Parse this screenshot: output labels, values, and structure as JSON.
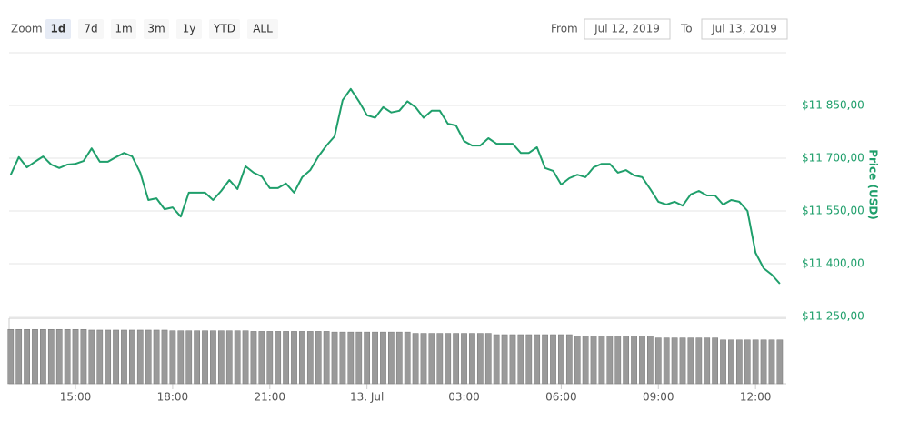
{
  "chart_data": {
    "type": "line",
    "range_selector": {
      "label": "Zoom",
      "buttons": [
        "1d",
        "7d",
        "1m",
        "3m",
        "1y",
        "YTD",
        "ALL"
      ],
      "selected": "1d",
      "from_label": "From",
      "from": "Jul 12, 2019",
      "to_label": "To",
      "to": "Jul 13, 2019"
    },
    "y_label": "Price (USD)",
    "color": "#1f9f6b",
    "volume_color": "#9a9a9a",
    "grid": true,
    "xlim": [
      "2019-07-12T12:57",
      "2019-07-13T12:57"
    ],
    "xticks": [
      {
        "value": "2019-07-12T15:00",
        "label": "15:00"
      },
      {
        "value": "2019-07-12T18:00",
        "label": "18:00"
      },
      {
        "value": "2019-07-12T21:00",
        "label": "21:00"
      },
      {
        "value": "2019-07-13T00:00",
        "label": "13. Jul"
      },
      {
        "value": "2019-07-13T03:00",
        "label": "03:00"
      },
      {
        "value": "2019-07-13T06:00",
        "label": "06:00"
      },
      {
        "value": "2019-07-13T09:00",
        "label": "09:00"
      },
      {
        "value": "2019-07-13T12:00",
        "label": "12:00"
      }
    ],
    "ylim": [
      11250,
      12000
    ],
    "yticks": [
      {
        "value": 11250,
        "label": "$11 250,00"
      },
      {
        "value": 11400,
        "label": "$11 400,00"
      },
      {
        "value": 11550,
        "label": "$11 550,00"
      },
      {
        "value": 11700,
        "label": "$11 700,00"
      },
      {
        "value": 11850,
        "label": "$11 850,00"
      }
    ],
    "x": [
      "2019-07-12T13:00",
      "2019-07-12T13:15",
      "2019-07-12T13:30",
      "2019-07-12T13:45",
      "2019-07-12T14:00",
      "2019-07-12T14:15",
      "2019-07-12T14:30",
      "2019-07-12T14:45",
      "2019-07-12T15:00",
      "2019-07-12T15:15",
      "2019-07-12T15:30",
      "2019-07-12T15:45",
      "2019-07-12T16:00",
      "2019-07-12T16:15",
      "2019-07-12T16:30",
      "2019-07-12T16:45",
      "2019-07-12T17:00",
      "2019-07-12T17:15",
      "2019-07-12T17:30",
      "2019-07-12T17:45",
      "2019-07-12T18:00",
      "2019-07-12T18:15",
      "2019-07-12T18:30",
      "2019-07-12T18:45",
      "2019-07-12T19:00",
      "2019-07-12T19:15",
      "2019-07-12T19:30",
      "2019-07-12T19:45",
      "2019-07-12T20:00",
      "2019-07-12T20:15",
      "2019-07-12T20:30",
      "2019-07-12T20:45",
      "2019-07-12T21:00",
      "2019-07-12T21:15",
      "2019-07-12T21:30",
      "2019-07-12T21:45",
      "2019-07-12T22:00",
      "2019-07-12T22:15",
      "2019-07-12T22:30",
      "2019-07-12T22:45",
      "2019-07-12T23:00",
      "2019-07-12T23:15",
      "2019-07-12T23:30",
      "2019-07-12T23:45",
      "2019-07-13T00:00",
      "2019-07-13T00:15",
      "2019-07-13T00:30",
      "2019-07-13T00:45",
      "2019-07-13T01:00",
      "2019-07-13T01:15",
      "2019-07-13T01:30",
      "2019-07-13T01:45",
      "2019-07-13T02:00",
      "2019-07-13T02:15",
      "2019-07-13T02:30",
      "2019-07-13T02:45",
      "2019-07-13T03:00",
      "2019-07-13T03:15",
      "2019-07-13T03:30",
      "2019-07-13T03:45",
      "2019-07-13T04:00",
      "2019-07-13T04:15",
      "2019-07-13T04:30",
      "2019-07-13T04:45",
      "2019-07-13T05:00",
      "2019-07-13T05:15",
      "2019-07-13T05:30",
      "2019-07-13T05:45",
      "2019-07-13T06:00",
      "2019-07-13T06:15",
      "2019-07-13T06:30",
      "2019-07-13T06:45",
      "2019-07-13T07:00",
      "2019-07-13T07:15",
      "2019-07-13T07:30",
      "2019-07-13T07:45",
      "2019-07-13T08:00",
      "2019-07-13T08:15",
      "2019-07-13T08:30",
      "2019-07-13T08:45",
      "2019-07-13T09:00",
      "2019-07-13T09:15",
      "2019-07-13T09:30",
      "2019-07-13T09:45",
      "2019-07-13T10:00",
      "2019-07-13T10:15",
      "2019-07-13T10:30",
      "2019-07-13T10:45",
      "2019-07-13T11:00",
      "2019-07-13T11:15",
      "2019-07-13T11:30",
      "2019-07-13T11:45",
      "2019-07-13T12:00",
      "2019-07-13T12:15",
      "2019-07-13T12:30",
      "2019-07-13T12:45"
    ],
    "values": [
      11653,
      11703,
      11674,
      11690,
      11705,
      11682,
      11672,
      11682,
      11684,
      11692,
      11728,
      11690,
      11690,
      11703,
      11715,
      11705,
      11659,
      11581,
      11586,
      11555,
      11560,
      11534,
      11602,
      11602,
      11602,
      11581,
      11607,
      11638,
      11612,
      11677,
      11659,
      11648,
      11615,
      11615,
      11628,
      11602,
      11646,
      11666,
      11705,
      11736,
      11762,
      11865,
      11897,
      11862,
      11822,
      11815,
      11845,
      11830,
      11835,
      11862,
      11845,
      11815,
      11835,
      11835,
      11798,
      11793,
      11749,
      11736,
      11736,
      11757,
      11741,
      11741,
      11741,
      11715,
      11715,
      11731,
      11672,
      11664,
      11625,
      11643,
      11653,
      11646,
      11674,
      11684,
      11684,
      11659,
      11666,
      11651,
      11646,
      11612,
      11576,
      11568,
      11576,
      11565,
      11597,
      11607,
      11594,
      11594,
      11568,
      11581,
      11576,
      11550,
      11431,
      11387,
      11369,
      11343
    ],
    "volume_ylim": [
      0,
      100
    ],
    "volume_values": [
      83,
      83,
      83,
      83,
      83,
      83,
      83,
      83,
      83,
      83,
      82,
      82,
      82,
      82,
      82,
      82,
      82,
      82,
      82,
      82,
      81,
      81,
      81,
      81,
      81,
      81,
      81,
      81,
      81,
      81,
      80,
      80,
      80,
      80,
      80,
      80,
      80,
      80,
      80,
      80,
      79,
      79,
      79,
      79,
      79,
      79,
      79,
      79,
      79,
      79,
      77,
      77,
      77,
      77,
      77,
      77,
      77,
      77,
      77,
      77,
      75,
      75,
      75,
      75,
      75,
      75,
      75,
      75,
      75,
      75,
      73,
      73,
      73,
      73,
      73,
      73,
      73,
      73,
      73,
      73,
      70,
      70,
      70,
      70,
      70,
      70,
      70,
      70,
      67,
      67,
      67,
      67,
      67,
      67,
      67,
      67
    ]
  }
}
